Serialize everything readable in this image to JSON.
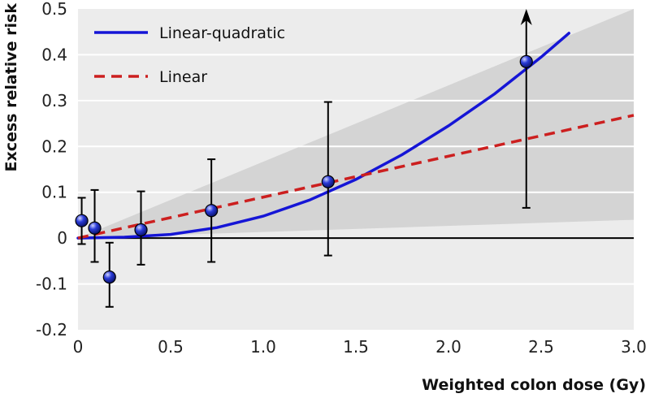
{
  "chart_data": {
    "type": "line",
    "title": "",
    "xlabel": "Weighted colon dose (Gy)",
    "ylabel": "Excess relative risk",
    "xlim": [
      0,
      3.0
    ],
    "ylim": [
      -0.2,
      0.5
    ],
    "x_ticks": [
      "0",
      "0.5",
      "1.0",
      "1.5",
      "2.0",
      "2.5",
      "3.0"
    ],
    "y_ticks": [
      "0.5",
      "0.4",
      "0.3",
      "0.2",
      "0.1",
      "0",
      "-0.1",
      "-0.2"
    ],
    "grid": true,
    "legend_position": "top-left",
    "series": [
      {
        "name": "Linear-quadratic",
        "style": "solid",
        "color": "#1515d6",
        "x": [
          0,
          0.25,
          0.5,
          0.75,
          1.0,
          1.25,
          1.5,
          1.75,
          2.0,
          2.25,
          2.5,
          2.65
        ],
        "y": [
          0,
          0.002,
          0.008,
          0.023,
          0.048,
          0.083,
          0.128,
          0.182,
          0.245,
          0.315,
          0.395,
          0.447
        ]
      },
      {
        "name": "Linear",
        "style": "dashed",
        "color": "#cc1f1f",
        "x": [
          0,
          3.0
        ],
        "y": [
          0,
          0.268
        ]
      }
    ],
    "confidence_band": {
      "x": [
        0,
        3.0
      ],
      "lower": [
        0,
        0.04
      ],
      "upper": [
        0,
        0.5
      ]
    },
    "points": [
      {
        "x": 0.02,
        "y": 0.038,
        "lo": -0.013,
        "hi": 0.088
      },
      {
        "x": 0.09,
        "y": 0.022,
        "lo": -0.052,
        "hi": 0.105
      },
      {
        "x": 0.17,
        "y": -0.085,
        "lo": -0.15,
        "hi": -0.01
      },
      {
        "x": 0.34,
        "y": 0.018,
        "lo": -0.058,
        "hi": 0.102
      },
      {
        "x": 0.72,
        "y": 0.06,
        "lo": -0.052,
        "hi": 0.172
      },
      {
        "x": 1.35,
        "y": 0.123,
        "lo": -0.038,
        "hi": 0.297
      },
      {
        "x": 2.42,
        "y": 0.385,
        "lo": 0.066,
        "hi": 0.5,
        "upper_arrow": true
      }
    ],
    "colors": {
      "plot_background": "#ececec",
      "band": "#d4d4d4",
      "grid": "#ffffff",
      "marker": "#2a3bd8"
    }
  }
}
